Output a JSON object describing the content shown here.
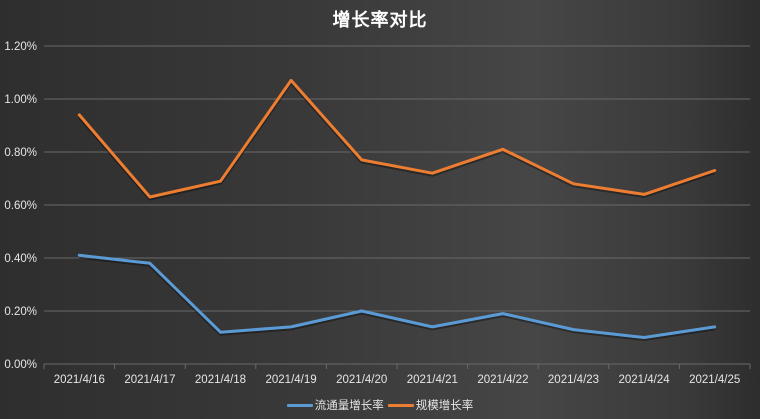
{
  "title": "增长率对比",
  "colors": {
    "series_blue": "#5b9bd5",
    "series_orange": "#ed7d31",
    "grid": "#6a6969",
    "text": "#e6e6e6"
  },
  "legend": {
    "items": [
      {
        "label": "流通量增长率",
        "color": "#5b9bd5"
      },
      {
        "label": "规模增长率",
        "color": "#ed7d31"
      }
    ]
  },
  "chart_data": {
    "type": "line",
    "title": "增长率对比",
    "xlabel": "",
    "ylabel": "",
    "categories": [
      "2021/4/16",
      "2021/4/17",
      "2021/4/18",
      "2021/4/19",
      "2021/4/20",
      "2021/4/21",
      "2021/4/22",
      "2021/4/23",
      "2021/4/24",
      "2021/4/25"
    ],
    "series": [
      {
        "name": "流通量增长率",
        "color": "#5b9bd5",
        "values": [
          0.41,
          0.38,
          0.12,
          0.14,
          0.2,
          0.14,
          0.19,
          0.13,
          0.1,
          0.14
        ]
      },
      {
        "name": "规模增长率",
        "color": "#ed7d31",
        "values": [
          0.94,
          0.63,
          0.69,
          1.07,
          0.77,
          0.72,
          0.81,
          0.68,
          0.64,
          0.73
        ]
      }
    ],
    "yticks": [
      "0.00%",
      "0.20%",
      "0.40%",
      "0.60%",
      "0.80%",
      "1.00%",
      "1.20%"
    ],
    "ylim": [
      0,
      1.2
    ],
    "yunit": "%",
    "grid": true,
    "legend_position": "bottom"
  }
}
